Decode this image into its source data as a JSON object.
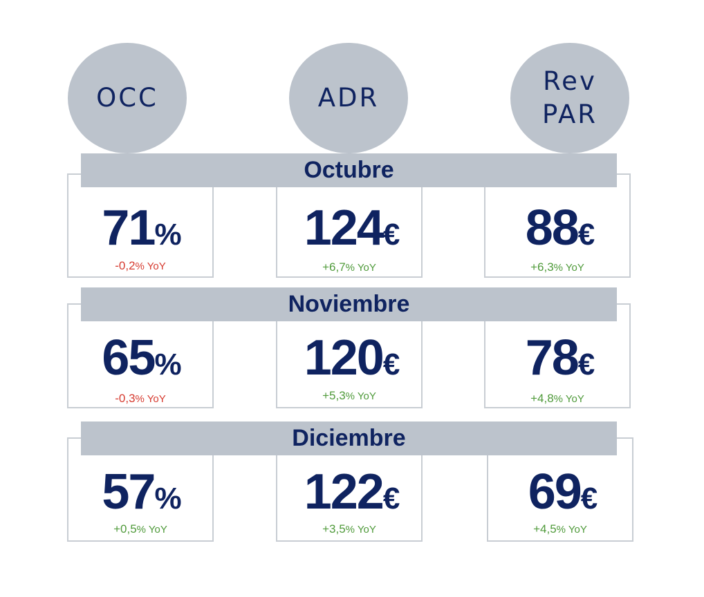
{
  "headers": [
    {
      "lines": [
        "OCC"
      ]
    },
    {
      "lines": [
        "ADR"
      ]
    },
    {
      "lines": [
        "Rev",
        "PAR"
      ]
    }
  ],
  "months": [
    {
      "name": "Octubre",
      "cells": [
        {
          "value": "71",
          "unit": "%",
          "change": "-0,2",
          "pct": "%",
          "suffix": " YoY",
          "trend": "down"
        },
        {
          "value": "124",
          "unit": "€",
          "change": "+6,7",
          "pct": "%",
          "suffix": " YoY",
          "trend": "up"
        },
        {
          "value": "88",
          "unit": "€",
          "change": "+6,3",
          "pct": "%",
          "suffix": " YoY",
          "trend": "up"
        }
      ]
    },
    {
      "name": "Noviembre",
      "cells": [
        {
          "value": "65",
          "unit": "%",
          "change": "-0,3",
          "pct": "%",
          "suffix": " YoY",
          "trend": "down"
        },
        {
          "value": "120",
          "unit": "€",
          "change": "+5,3",
          "pct": "%",
          "suffix": " YoY",
          "trend": "up"
        },
        {
          "value": "78",
          "unit": "€",
          "change": "+4,8",
          "pct": "%",
          "suffix": " YoY",
          "trend": "up"
        }
      ]
    },
    {
      "name": "Diciembre",
      "cells": [
        {
          "value": "57",
          "unit": "%",
          "change": "+0,5",
          "pct": "%",
          "suffix": " YoY",
          "trend": "up"
        },
        {
          "value": "122",
          "unit": "€",
          "change": "+3,5",
          "pct": "%",
          "suffix": " YoY",
          "trend": "up"
        },
        {
          "value": "69",
          "unit": "€",
          "change": "+4,5",
          "pct": "%",
          "suffix": " YoY",
          "trend": "up"
        }
      ]
    }
  ],
  "colors": {
    "navy": "#0f2360",
    "gray": "#bcc3cc",
    "border": "#c8cdd3",
    "negative": "#d63a2f",
    "positive": "#4f9a3a"
  }
}
